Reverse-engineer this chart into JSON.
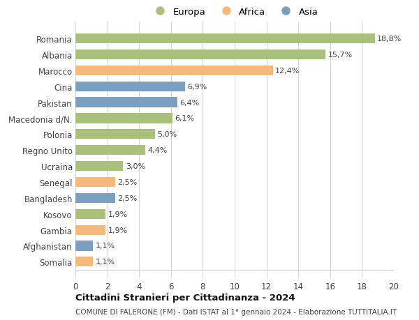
{
  "categories": [
    "Romania",
    "Albania",
    "Marocco",
    "Cina",
    "Pakistan",
    "Macedonia d/N.",
    "Polonia",
    "Regno Unito",
    "Ucraina",
    "Senegal",
    "Bangladesh",
    "Kosovo",
    "Gambia",
    "Afghanistan",
    "Somalia"
  ],
  "values": [
    18.8,
    15.7,
    12.4,
    6.9,
    6.4,
    6.1,
    5.0,
    4.4,
    3.0,
    2.5,
    2.5,
    1.9,
    1.9,
    1.1,
    1.1
  ],
  "labels": [
    "18,8%",
    "15,7%",
    "12,4%",
    "6,9%",
    "6,4%",
    "6,1%",
    "5,0%",
    "4,4%",
    "3,0%",
    "2,5%",
    "2,5%",
    "1,9%",
    "1,9%",
    "1,1%",
    "1,1%"
  ],
  "continent": [
    "Europa",
    "Europa",
    "Africa",
    "Asia",
    "Asia",
    "Europa",
    "Europa",
    "Europa",
    "Europa",
    "Africa",
    "Asia",
    "Europa",
    "Africa",
    "Asia",
    "Africa"
  ],
  "colors": {
    "Europa": "#a8c07a",
    "Africa": "#f5b97a",
    "Asia": "#7a9fc0"
  },
  "legend_labels": [
    "Europa",
    "Africa",
    "Asia"
  ],
  "legend_colors": [
    "#a8c07a",
    "#f5b97a",
    "#7a9fc0"
  ],
  "xlim": [
    0,
    20
  ],
  "xticks": [
    0,
    2,
    4,
    6,
    8,
    10,
    12,
    14,
    16,
    18,
    20
  ],
  "title1": "Cittadini Stranieri per Cittadinanza - 2024",
  "title2": "COMUNE DI FALERONE (FM) - Dati ISTAT al 1° gennaio 2024 - Elaborazione TUTTITALIA.IT",
  "background_color": "#ffffff",
  "grid_color": "#cccccc"
}
